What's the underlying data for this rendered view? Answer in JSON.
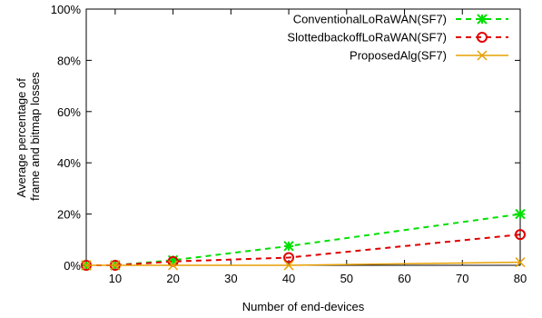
{
  "chart_data": {
    "type": "line",
    "xlabel": "Number of end-devices",
    "ylabel": [
      "Average percentage of",
      "frame and bitmap losses"
    ],
    "xlim": [
      5,
      80
    ],
    "ylim": [
      0,
      100
    ],
    "x_ticks": [
      10,
      20,
      30,
      40,
      50,
      60,
      70,
      80
    ],
    "y_ticks": [
      0,
      20,
      40,
      60,
      80,
      100
    ],
    "y_tick_suffix": "%",
    "grid": false,
    "legend_position": "top-right",
    "series": [
      {
        "name": "ConventionalLoRaWAN(SF7)",
        "color": "#00e000",
        "line": "dashed",
        "marker": "star",
        "x": [
          5,
          10,
          20,
          40,
          80
        ],
        "y": [
          0,
          0,
          2,
          7.5,
          20
        ]
      },
      {
        "name": "SlottedbackoffLoRaWAN(SF7)",
        "color": "#e00000",
        "line": "dashed",
        "marker": "circle",
        "x": [
          5,
          10,
          20,
          40,
          80
        ],
        "y": [
          0,
          0,
          1.5,
          3,
          12
        ]
      },
      {
        "name": "ProposedAlg(SF7)",
        "color": "#e69f00",
        "line": "solid",
        "marker": "x",
        "x": [
          5,
          10,
          20,
          40,
          80
        ],
        "y": [
          0,
          0,
          0,
          0,
          1.2
        ]
      }
    ]
  }
}
